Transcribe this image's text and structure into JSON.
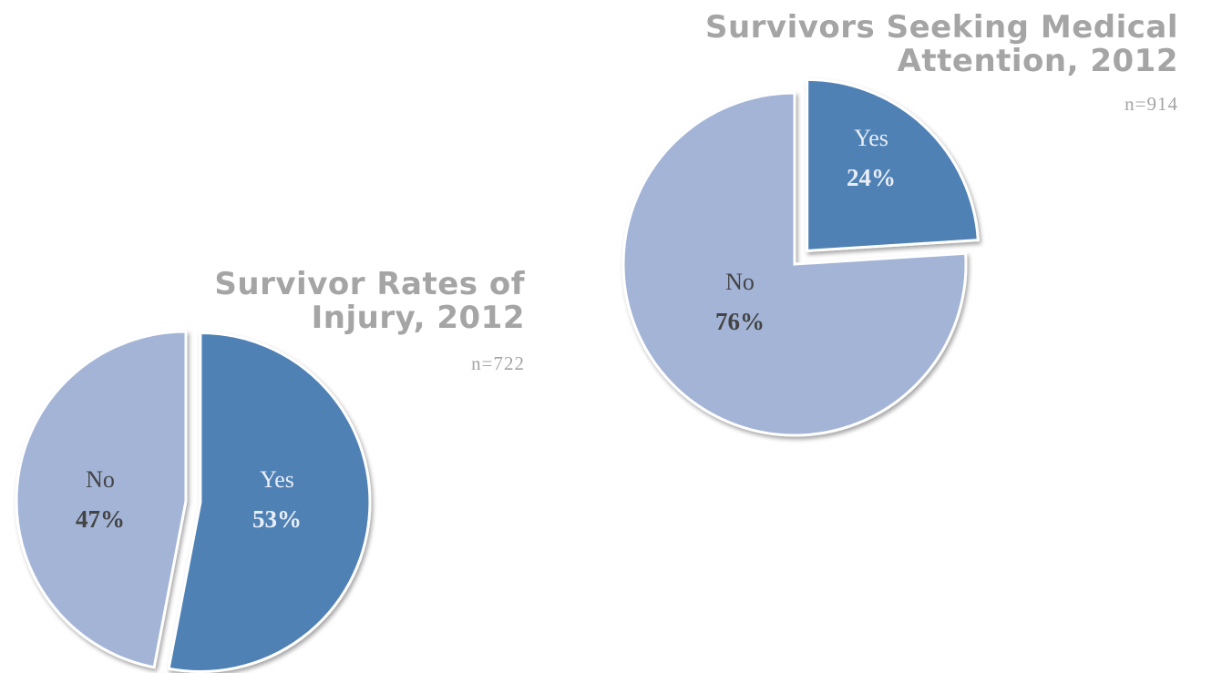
{
  "chart_data": [
    {
      "type": "pie",
      "title_lines": [
        "Survivors Seeking Medical",
        "Attention, 2012"
      ],
      "subtitle": "n=914",
      "slices": [
        {
          "label": "Yes",
          "value": 24,
          "display": "24%",
          "exploded": true
        },
        {
          "label": "No",
          "value": 76,
          "display": "76%",
          "exploded": false
        }
      ],
      "colors": {
        "Yes": "#4f81b5",
        "No": "#a3b4d6"
      },
      "label_colors": {
        "Yes": "#e8eef7",
        "No": "#444444"
      }
    },
    {
      "type": "pie",
      "title_lines": [
        "Survivor Rates of",
        "Injury, 2012"
      ],
      "subtitle": "n=722",
      "slices": [
        {
          "label": "Yes",
          "value": 53,
          "display": "53%",
          "exploded": true
        },
        {
          "label": "No",
          "value": 47,
          "display": "47%",
          "exploded": false
        }
      ],
      "colors": {
        "Yes": "#4f81b5",
        "No": "#a3b4d6"
      },
      "label_colors": {
        "Yes": "#e8eef7",
        "No": "#444444"
      }
    }
  ]
}
